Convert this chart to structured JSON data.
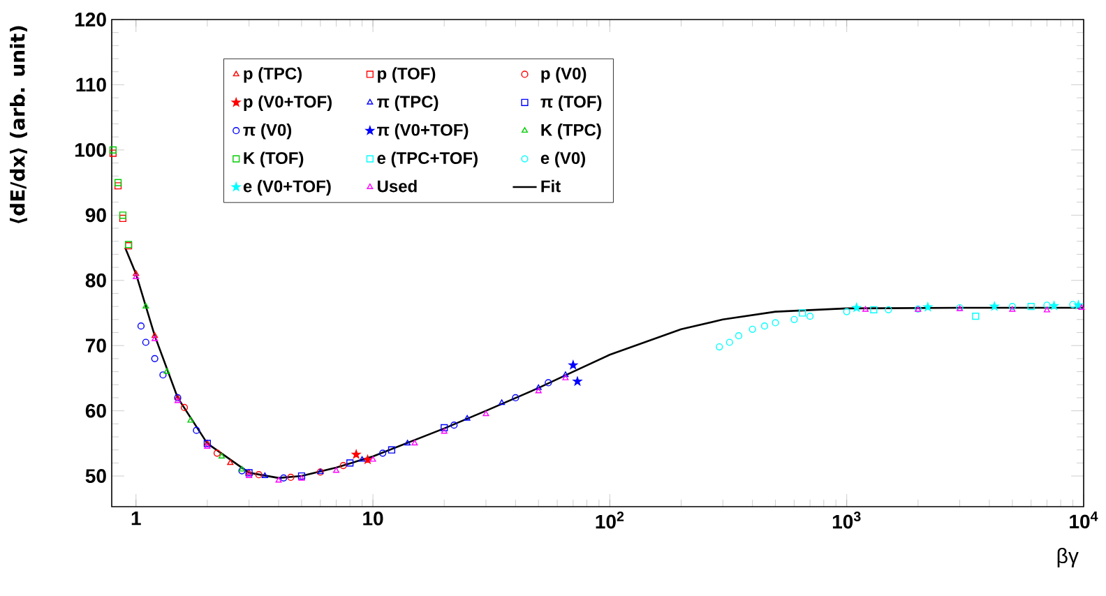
{
  "chart_data": {
    "type": "scatter",
    "xlabel": "βγ",
    "ylabel": "⟨dE/dx⟩ (arb. unit)",
    "log": "x",
    "xlim": [
      0.79,
      10000
    ],
    "ylim": [
      45.3,
      120
    ],
    "xticks": [
      1,
      10,
      {
        "value": 100,
        "label": "10$^{2}$"
      },
      {
        "value": 1000,
        "label": "10$^{3}$"
      },
      {
        "value": 10000,
        "label": "10$^{4}$"
      }
    ],
    "yticks": [
      50,
      60,
      70,
      80,
      90,
      100,
      110,
      120
    ],
    "legend": "top left",
    "grid": false,
    "series": [
      {
        "name": "p (TPC)",
        "color": "#ff0000",
        "marker": "triangle",
        "x": [
          1.0,
          1.2,
          1.5,
          2.0,
          2.5,
          3.0
        ],
        "values": [
          81,
          71.5,
          62,
          55,
          52,
          50.5
        ]
      },
      {
        "name": "p (TOF)",
        "color": "#ff0000",
        "marker": "square",
        "x": [
          0.8,
          0.84,
          0.88,
          0.93
        ],
        "values": [
          99.5,
          94.5,
          89.5,
          85.3
        ]
      },
      {
        "name": "p (V0)",
        "color": "#ff0000",
        "marker": "circle",
        "x": [
          1.6,
          2.2,
          3.3,
          4.5,
          6,
          7.5
        ],
        "values": [
          60.5,
          53.5,
          50.2,
          49.8,
          50.6,
          51.6
        ]
      },
      {
        "name": "p (V0+TOF)",
        "color": "#ff0000",
        "marker": "star",
        "x": [
          8.5,
          9.5
        ],
        "values": [
          53.3,
          52.5
        ]
      },
      {
        "name": "π (TPC)",
        "color": "#0000ff",
        "marker": "triangle",
        "x": [
          3.5,
          6,
          9,
          14,
          25,
          35,
          50,
          65
        ],
        "values": [
          50,
          50.6,
          52.5,
          55,
          58.8,
          61.2,
          63.5,
          65.5
        ]
      },
      {
        "name": "π (TOF)",
        "color": "#0000ff",
        "marker": "square",
        "x": [
          2,
          3,
          5,
          8,
          12,
          20
        ],
        "values": [
          55,
          50.5,
          50,
          52,
          54,
          57.4
        ]
      },
      {
        "name": "π (V0)",
        "color": "#0000ff",
        "marker": "circle",
        "x": [
          1.05,
          1.1,
          1.2,
          1.3,
          1.5,
          1.8,
          2.8,
          4.2,
          11,
          22,
          40,
          55
        ],
        "values": [
          73,
          70.5,
          68,
          65.5,
          62,
          57,
          50.8,
          49.7,
          53.5,
          57.8,
          62,
          64.3
        ]
      },
      {
        "name": "π (V0+TOF)",
        "color": "#0000ff",
        "marker": "star",
        "x": [
          70,
          73
        ],
        "values": [
          67,
          64.5
        ]
      },
      {
        "name": "K (TPC)",
        "color": "#00cc00",
        "marker": "triangle",
        "x": [
          1.1,
          1.35,
          1.7,
          2.3,
          2.8
        ],
        "values": [
          76,
          66,
          58.5,
          53,
          51
        ]
      },
      {
        "name": "K (TOF)",
        "color": "#00cc00",
        "marker": "square",
        "x": [
          0.8,
          0.84,
          0.88,
          0.93
        ],
        "values": [
          100,
          95,
          90,
          85.5
        ]
      },
      {
        "name": "e (TPC+TOF)",
        "color": "#00ffff",
        "marker": "square",
        "x": [
          650,
          1300,
          3500,
          6000
        ],
        "values": [
          75,
          75.5,
          74.5,
          76
        ]
      },
      {
        "name": "e (V0)",
        "color": "#00ffff",
        "marker": "circle",
        "x": [
          290,
          320,
          350,
          400,
          450,
          500,
          600,
          700,
          1000,
          1500,
          2000,
          3000,
          5000,
          7000,
          9000
        ],
        "values": [
          69.8,
          70.5,
          71.5,
          72.5,
          73,
          73.5,
          74,
          74.5,
          75.2,
          75.5,
          75.6,
          75.8,
          76,
          76.2,
          76.3
        ]
      },
      {
        "name": "e (V0+TOF)",
        "color": "#00ffff",
        "marker": "star",
        "x": [
          1100,
          2200,
          4200,
          7500,
          9500
        ],
        "values": [
          75.8,
          75.9,
          76,
          76.1,
          76.2
        ]
      },
      {
        "name": "Used",
        "color": "#ff00ff",
        "marker": "triangle",
        "x": [
          1,
          1.2,
          1.5,
          2,
          3,
          4,
          5,
          7,
          10,
          15,
          20,
          30,
          50,
          65,
          1200,
          2000,
          3000,
          5000,
          7000,
          9800
        ],
        "values": [
          80.5,
          71,
          61.5,
          54.5,
          50,
          49.3,
          49.6,
          50.8,
          52.5,
          55,
          56.8,
          59.5,
          63,
          65,
          75.5,
          75.5,
          75.6,
          75.5,
          75.4,
          75.8
        ]
      },
      {
        "name": "Fit",
        "type": "line",
        "color": "#000000",
        "marker": "none",
        "x": [
          0.9,
          1,
          1.2,
          1.5,
          2,
          3,
          4,
          5,
          7,
          10,
          20,
          30,
          50,
          70,
          100,
          200,
          300,
          500,
          1000,
          3000,
          10000
        ],
        "values": [
          85,
          81,
          71.5,
          62,
          55,
          50.5,
          49.7,
          50,
          51.3,
          53,
          57.3,
          60,
          63.5,
          66,
          68.6,
          72.5,
          74,
          75.2,
          75.7,
          75.8,
          75.8
        ]
      }
    ]
  }
}
